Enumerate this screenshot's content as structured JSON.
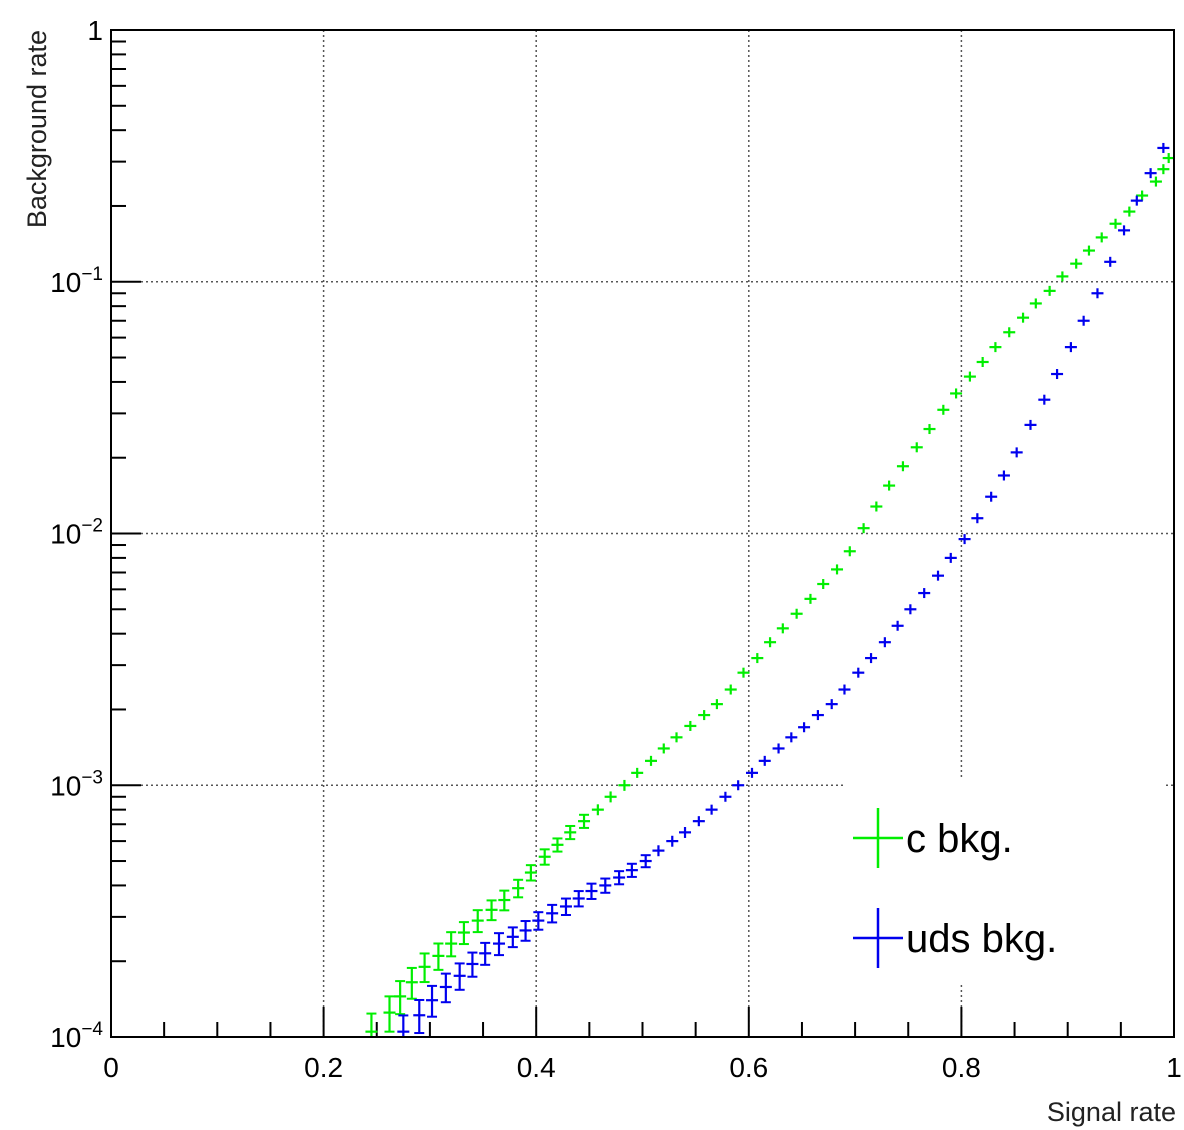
{
  "chart_data": {
    "type": "scatter",
    "xlabel": "Signal rate",
    "ylabel": "Background rate",
    "xlim": [
      0,
      1
    ],
    "ylim": [
      0.0001,
      1
    ],
    "yscale": "log",
    "grid": true,
    "legend_position": "bottom-right",
    "x_ticks": [
      {
        "value": 0,
        "label": "0"
      },
      {
        "value": 0.2,
        "label": "0.2"
      },
      {
        "value": 0.4,
        "label": "0.4"
      },
      {
        "value": 0.6,
        "label": "0.6"
      },
      {
        "value": 0.8,
        "label": "0.8"
      },
      {
        "value": 1,
        "label": "1"
      }
    ],
    "y_ticks": [
      {
        "value": 0.0001,
        "base": "10",
        "exp": "−4"
      },
      {
        "value": 0.001,
        "base": "10",
        "exp": "−3"
      },
      {
        "value": 0.01,
        "base": "10",
        "exp": "−2"
      },
      {
        "value": 0.1,
        "base": "10",
        "exp": "−1"
      },
      {
        "value": 1,
        "base": "1",
        "exp": ""
      }
    ],
    "series": [
      {
        "name": "c bkg.",
        "color": "#00ee00",
        "points": [
          [
            0.245,
            0.000105,
            0.18
          ],
          [
            0.262,
            0.000125,
            0.16
          ],
          [
            0.272,
            0.000145,
            0.15
          ],
          [
            0.283,
            0.000165,
            0.14
          ],
          [
            0.295,
            0.00019,
            0.13
          ],
          [
            0.308,
            0.00021,
            0.12
          ],
          [
            0.32,
            0.000235,
            0.11
          ],
          [
            0.332,
            0.00026,
            0.1
          ],
          [
            0.345,
            0.00029,
            0.1
          ],
          [
            0.358,
            0.00032,
            0.09
          ],
          [
            0.37,
            0.00035,
            0.09
          ],
          [
            0.383,
            0.00039,
            0.08
          ],
          [
            0.395,
            0.00045,
            0.07
          ],
          [
            0.408,
            0.00052,
            0.07
          ],
          [
            0.42,
            0.00058,
            0.06
          ],
          [
            0.432,
            0.00065,
            0.06
          ],
          [
            0.445,
            0.00072,
            0.06
          ],
          [
            0.458,
            0.0008,
            0.05
          ],
          [
            0.47,
            0.0009,
            0.05
          ],
          [
            0.483,
            0.001,
            0.05
          ],
          [
            0.495,
            0.00112,
            0.045
          ],
          [
            0.508,
            0.00125,
            0.045
          ],
          [
            0.52,
            0.0014,
            0.04
          ],
          [
            0.532,
            0.00155,
            0.04
          ],
          [
            0.545,
            0.00172,
            0.04
          ],
          [
            0.558,
            0.0019,
            0.035
          ],
          [
            0.57,
            0.0021,
            0.035
          ],
          [
            0.583,
            0.0024,
            0.035
          ],
          [
            0.595,
            0.0028,
            0.03
          ],
          [
            0.608,
            0.0032,
            0.03
          ],
          [
            0.62,
            0.0037,
            0.03
          ],
          [
            0.632,
            0.0042,
            0.03
          ],
          [
            0.645,
            0.0048,
            0.028
          ],
          [
            0.658,
            0.0055,
            0.028
          ],
          [
            0.67,
            0.0063,
            0.026
          ],
          [
            0.683,
            0.0072,
            0.026
          ],
          [
            0.695,
            0.0085,
            0.024
          ],
          [
            0.708,
            0.0105,
            0.024
          ],
          [
            0.72,
            0.0128,
            0.022
          ],
          [
            0.732,
            0.0155,
            0.022
          ],
          [
            0.745,
            0.0185,
            0.02
          ],
          [
            0.758,
            0.022,
            0.02
          ],
          [
            0.77,
            0.026,
            0.018
          ],
          [
            0.783,
            0.031,
            0.018
          ],
          [
            0.795,
            0.036,
            0.016
          ],
          [
            0.808,
            0.042,
            0.016
          ],
          [
            0.82,
            0.048,
            0.015
          ],
          [
            0.832,
            0.055,
            0.015
          ],
          [
            0.845,
            0.063,
            0.014
          ],
          [
            0.858,
            0.072,
            0.014
          ],
          [
            0.87,
            0.082,
            0.013
          ],
          [
            0.883,
            0.092,
            0.013
          ],
          [
            0.895,
            0.105,
            0.012
          ],
          [
            0.908,
            0.118,
            0.012
          ],
          [
            0.92,
            0.133,
            0.011
          ],
          [
            0.932,
            0.15,
            0.011
          ],
          [
            0.945,
            0.17,
            0.01
          ],
          [
            0.958,
            0.19,
            0.01
          ],
          [
            0.97,
            0.22,
            0.009
          ],
          [
            0.983,
            0.25,
            0.009
          ],
          [
            0.99,
            0.28,
            0.008
          ],
          [
            0.995,
            0.31,
            0.008
          ]
        ]
      },
      {
        "name": "uds bkg.",
        "color": "#0000ee",
        "points": [
          [
            0.275,
            0.000105,
            0.16
          ],
          [
            0.29,
            0.000122,
            0.15
          ],
          [
            0.302,
            0.00014,
            0.14
          ],
          [
            0.315,
            0.000158,
            0.13
          ],
          [
            0.328,
            0.000175,
            0.12
          ],
          [
            0.34,
            0.000195,
            0.11
          ],
          [
            0.352,
            0.000215,
            0.1
          ],
          [
            0.365,
            0.000235,
            0.1
          ],
          [
            0.378,
            0.00025,
            0.09
          ],
          [
            0.39,
            0.000265,
            0.09
          ],
          [
            0.402,
            0.00029,
            0.08
          ],
          [
            0.415,
            0.00031,
            0.08
          ],
          [
            0.428,
            0.00033,
            0.075
          ],
          [
            0.44,
            0.000355,
            0.07
          ],
          [
            0.452,
            0.00038,
            0.07
          ],
          [
            0.465,
            0.0004,
            0.065
          ],
          [
            0.478,
            0.00043,
            0.06
          ],
          [
            0.49,
            0.00046,
            0.06
          ],
          [
            0.503,
            0.0005,
            0.055
          ],
          [
            0.515,
            0.00055,
            0.05
          ],
          [
            0.528,
            0.0006,
            0.05
          ],
          [
            0.54,
            0.00065,
            0.05
          ],
          [
            0.553,
            0.00072,
            0.045
          ],
          [
            0.565,
            0.0008,
            0.045
          ],
          [
            0.578,
            0.0009,
            0.04
          ],
          [
            0.59,
            0.001,
            0.04
          ],
          [
            0.603,
            0.00112,
            0.04
          ],
          [
            0.615,
            0.00125,
            0.035
          ],
          [
            0.628,
            0.0014,
            0.035
          ],
          [
            0.64,
            0.00155,
            0.035
          ],
          [
            0.652,
            0.0017,
            0.03
          ],
          [
            0.665,
            0.0019,
            0.03
          ],
          [
            0.678,
            0.0021,
            0.03
          ],
          [
            0.69,
            0.0024,
            0.028
          ],
          [
            0.703,
            0.0028,
            0.028
          ],
          [
            0.715,
            0.0032,
            0.026
          ],
          [
            0.728,
            0.0037,
            0.026
          ],
          [
            0.74,
            0.0043,
            0.024
          ],
          [
            0.752,
            0.005,
            0.024
          ],
          [
            0.765,
            0.0058,
            0.022
          ],
          [
            0.778,
            0.0068,
            0.022
          ],
          [
            0.79,
            0.008,
            0.02
          ],
          [
            0.803,
            0.0095,
            0.02
          ],
          [
            0.815,
            0.0115,
            0.018
          ],
          [
            0.828,
            0.014,
            0.018
          ],
          [
            0.84,
            0.017,
            0.016
          ],
          [
            0.852,
            0.021,
            0.016
          ],
          [
            0.865,
            0.027,
            0.015
          ],
          [
            0.878,
            0.034,
            0.015
          ],
          [
            0.89,
            0.043,
            0.014
          ],
          [
            0.903,
            0.055,
            0.014
          ],
          [
            0.915,
            0.07,
            0.013
          ],
          [
            0.928,
            0.09,
            0.013
          ],
          [
            0.94,
            0.12,
            0.012
          ],
          [
            0.953,
            0.16,
            0.012
          ],
          [
            0.965,
            0.21,
            0.011
          ],
          [
            0.978,
            0.27,
            0.011
          ],
          [
            0.99,
            0.34,
            0.01
          ]
        ]
      }
    ]
  }
}
